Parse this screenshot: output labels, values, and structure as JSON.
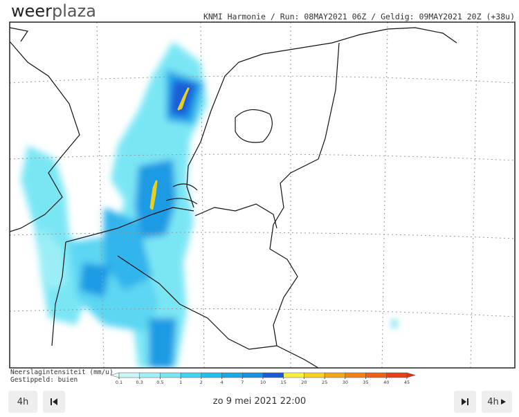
{
  "header": {
    "logo_part1": "weer",
    "logo_part2": "plaza",
    "info": "KNMI Harmonie / Run: 08MAY2021 06Z / Geldig: 09MAY2021 20Z (+38u)"
  },
  "legend": {
    "title": "Neerslagintensiteit (mm/u)",
    "subtitle": "Gestippeld: buien",
    "ticks": [
      0.1,
      0.3,
      0.5,
      1,
      2,
      4,
      7,
      10,
      15,
      20,
      25,
      30,
      35,
      40,
      45
    ],
    "colors": [
      "#c8f8f8",
      "#a0f0f8",
      "#78e6f4",
      "#40d4f0",
      "#20c0ec",
      "#1aa8e6",
      "#1890e0",
      "#1a5cd8",
      "#f8f040",
      "#f8d020",
      "#f0a818",
      "#f08018",
      "#ec6018",
      "#e84018"
    ],
    "low_color": "#e8fcfc",
    "high_color": "#e03010"
  },
  "controls": {
    "step_back": "4h",
    "date": "zo 9 mei 2021 22:00",
    "step_forward": "4h"
  }
}
